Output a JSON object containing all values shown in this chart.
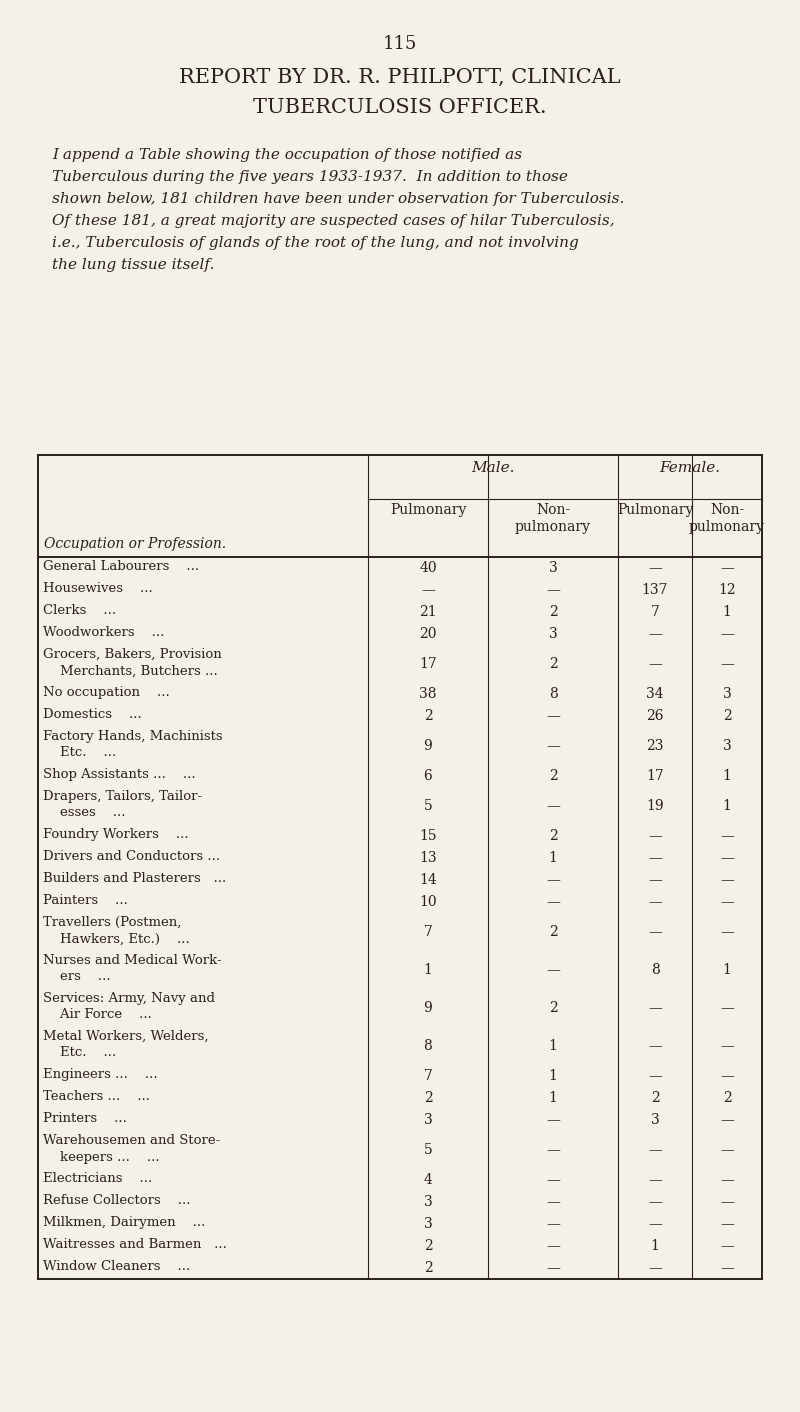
{
  "page_number": "115",
  "title_line1": "REPORT BY DR. R. PHILPOTT, CLINICAL",
  "title_line2": "TUBERCULOSIS OFFICER.",
  "para_lines": [
    "I append a Table showing the occupation of those notified as",
    "Tuberculous during the five years 1933-1937.  In addition to those",
    "shown below, 181 children have been under observation for Tuberculosis.",
    "Of these 181, a great majority are suspected cases of hilar Tuberculosis,",
    "i.e., Tuberculosis of glands of the root of the lung, and not involving",
    "the lung tissue itself."
  ],
  "bg_color": "#f5f0e8",
  "text_color": "#2a2218",
  "col_header_male": "Male.",
  "col_header_female": "Female.",
  "col_occ": "Occupation or Profession.",
  "rows": [
    {
      "occ": "General Labourers    ...",
      "two_line": false,
      "mp": "40",
      "mnp": "3",
      "fp": "—",
      "fnp": "—"
    },
    {
      "occ": "Housewives    ...",
      "two_line": false,
      "mp": "—",
      "mnp": "—",
      "fp": "137",
      "fnp": "12"
    },
    {
      "occ": "Clerks    ...",
      "two_line": false,
      "mp": "21",
      "mnp": "2",
      "fp": "7",
      "fnp": "1"
    },
    {
      "occ": "Woodworkers    ...",
      "two_line": false,
      "mp": "20",
      "mnp": "3",
      "fp": "—",
      "fnp": "—"
    },
    {
      "occ": "Grocers, Bakers, Provision\n    Merchants, Butchers ...",
      "two_line": true,
      "mp": "17",
      "mnp": "2",
      "fp": "—",
      "fnp": "—"
    },
    {
      "occ": "No occupation    ...",
      "two_line": false,
      "mp": "38",
      "mnp": "8",
      "fp": "34",
      "fnp": "3"
    },
    {
      "occ": "Domestics    ...",
      "two_line": false,
      "mp": "2",
      "mnp": "—",
      "fp": "26",
      "fnp": "2"
    },
    {
      "occ": "Factory Hands, Machinists\n    Etc.    ...",
      "two_line": true,
      "mp": "9",
      "mnp": "—",
      "fp": "23",
      "fnp": "3"
    },
    {
      "occ": "Shop Assistants ...    ...",
      "two_line": false,
      "mp": "6",
      "mnp": "2",
      "fp": "17",
      "fnp": "1"
    },
    {
      "occ": "Drapers, Tailors, Tailor-\n    esses    ...",
      "two_line": true,
      "mp": "5",
      "mnp": "—",
      "fp": "19",
      "fnp": "1"
    },
    {
      "occ": "Foundry Workers    ...",
      "two_line": false,
      "mp": "15",
      "mnp": "2",
      "fp": "—",
      "fnp": "—"
    },
    {
      "occ": "Drivers and Conductors ...",
      "two_line": false,
      "mp": "13",
      "mnp": "1",
      "fp": "—",
      "fnp": "—"
    },
    {
      "occ": "Builders and Plasterers   ...",
      "two_line": false,
      "mp": "14",
      "mnp": "—",
      "fp": "—",
      "fnp": "—"
    },
    {
      "occ": "Painters    ...",
      "two_line": false,
      "mp": "10",
      "mnp": "—",
      "fp": "—",
      "fnp": "—"
    },
    {
      "occ": "Travellers (Postmen,\n    Hawkers, Etc.)    ...",
      "two_line": true,
      "mp": "7",
      "mnp": "2",
      "fp": "—",
      "fnp": "—"
    },
    {
      "occ": "Nurses and Medical Work-\n    ers    ...",
      "two_line": true,
      "mp": "1",
      "mnp": "—",
      "fp": "8",
      "fnp": "1"
    },
    {
      "occ": "Services: Army, Navy and\n    Air Force    ...",
      "two_line": true,
      "mp": "9",
      "mnp": "2",
      "fp": "—",
      "fnp": "—"
    },
    {
      "occ": "Metal Workers, Welders,\n    Etc.    ...",
      "two_line": true,
      "mp": "8",
      "mnp": "1",
      "fp": "—",
      "fnp": "—"
    },
    {
      "occ": "Engineers ...    ...",
      "two_line": false,
      "mp": "7",
      "mnp": "1",
      "fp": "—",
      "fnp": "—"
    },
    {
      "occ": "Teachers ...    ...",
      "two_line": false,
      "mp": "2",
      "mnp": "1",
      "fp": "2",
      "fnp": "2"
    },
    {
      "occ": "Printers    ...",
      "two_line": false,
      "mp": "3",
      "mnp": "—",
      "fp": "3",
      "fnp": "—"
    },
    {
      "occ": "Warehousemen and Store-\n    keepers ...    ...",
      "two_line": true,
      "mp": "5",
      "mnp": "—",
      "fp": "—",
      "fnp": "—"
    },
    {
      "occ": "Electricians    ...",
      "two_line": false,
      "mp": "4",
      "mnp": "—",
      "fp": "—",
      "fnp": "—"
    },
    {
      "occ": "Refuse Collectors    ...",
      "two_line": false,
      "mp": "3",
      "mnp": "—",
      "fp": "—",
      "fnp": "—"
    },
    {
      "occ": "Milkmen, Dairymen    ...",
      "two_line": false,
      "mp": "3",
      "mnp": "—",
      "fp": "—",
      "fnp": "—"
    },
    {
      "occ": "Waitresses and Barmen   ...",
      "two_line": false,
      "mp": "2",
      "mnp": "—",
      "fp": "1",
      "fnp": "—"
    },
    {
      "occ": "Window Cleaners    ...",
      "two_line": false,
      "mp": "2",
      "mnp": "—",
      "fp": "—",
      "fnp": "—"
    }
  ]
}
